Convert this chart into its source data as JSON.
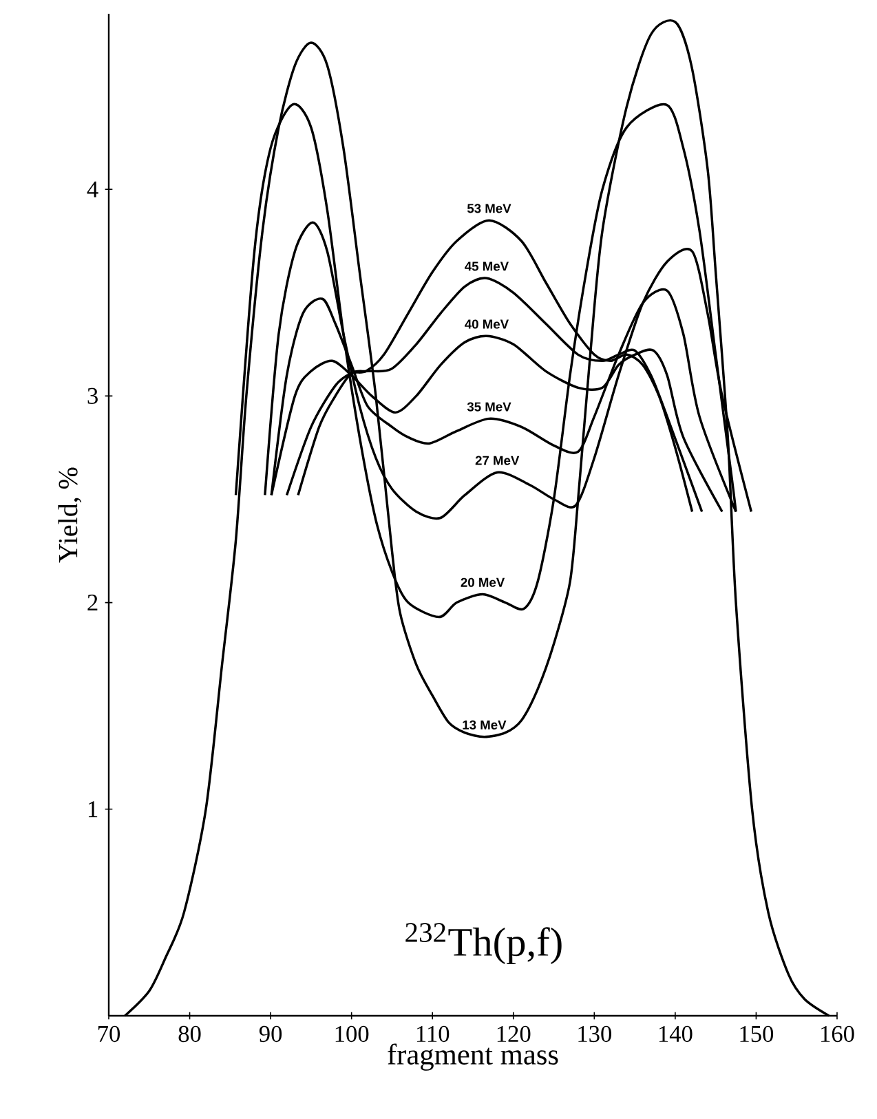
{
  "chart_data": {
    "type": "line",
    "xlabel": "fragment mass",
    "ylabel": "Yield, %",
    "xlim": [
      70,
      160
    ],
    "ylim": [
      0,
      4.85
    ],
    "xticks": [
      70,
      80,
      90,
      100,
      110,
      120,
      130,
      140,
      150,
      160
    ],
    "yticks": [
      1,
      2,
      3,
      4
    ],
    "annotations": [
      "$^{232}$Th(p,f)"
    ],
    "series": [
      {
        "name": "53 MeV",
        "color": "#000000",
        "x": [
          92,
          95,
          98,
          100,
          101.8,
          104,
          107,
          110,
          113,
          117,
          121,
          124,
          127,
          130,
          132,
          134,
          136,
          138,
          140,
          142.1
        ],
        "values": [
          2.52,
          2.85,
          3.05,
          3.11,
          3.12,
          3.2,
          3.4,
          3.6,
          3.75,
          3.85,
          3.75,
          3.55,
          3.35,
          3.2,
          3.17,
          3.2,
          3.15,
          3.0,
          2.75,
          2.44
        ]
      },
      {
        "name": "45 MeV",
        "color": "#000000",
        "x": [
          93.4,
          96,
          98,
          100,
          102,
          104.9,
          108,
          111,
          114,
          116.7,
          120,
          124,
          128,
          131,
          133,
          135,
          137,
          139,
          143.3
        ],
        "values": [
          2.52,
          2.85,
          3.0,
          3.11,
          3.12,
          3.13,
          3.25,
          3.4,
          3.53,
          3.57,
          3.5,
          3.35,
          3.2,
          3.17,
          3.2,
          3.22,
          3.1,
          2.9,
          2.44
        ]
      },
      {
        "name": "40 MeV",
        "color": "#000000",
        "x": [
          90.1,
          93,
          95,
          97.6,
          100,
          102.5,
          105.4,
          108,
          111,
          114,
          116.7,
          120,
          124,
          128,
          131,
          133,
          135,
          137.3,
          139,
          141,
          145.8
        ],
        "values": [
          2.52,
          3.0,
          3.12,
          3.17,
          3.1,
          3.0,
          2.92,
          3.0,
          3.15,
          3.26,
          3.29,
          3.25,
          3.12,
          3.04,
          3.04,
          3.15,
          3.2,
          3.22,
          3.1,
          2.8,
          2.44
        ]
      },
      {
        "name": "35 MeV",
        "color": "#000000",
        "x": [
          90.1,
          92,
          94,
          96.4,
          98,
          100,
          102,
          105,
          107,
          109.6,
          113,
          117,
          121,
          125,
          128,
          130,
          133,
          136,
          139,
          141,
          143,
          147.5
        ],
        "values": [
          2.52,
          3.1,
          3.4,
          3.47,
          3.35,
          3.15,
          2.95,
          2.85,
          2.8,
          2.77,
          2.83,
          2.89,
          2.85,
          2.76,
          2.73,
          2.9,
          3.2,
          3.45,
          3.51,
          3.3,
          2.9,
          2.44
        ]
      },
      {
        "name": "27 MeV",
        "color": "#000000",
        "x": [
          89.3,
          91,
          93,
          95.2,
          97,
          99,
          101,
          103,
          105,
          108,
          111,
          114,
          118,
          122,
          125,
          127.7,
          130,
          133,
          136,
          139,
          142.1,
          144,
          145.8,
          149.4
        ],
        "values": [
          2.52,
          3.3,
          3.7,
          3.84,
          3.7,
          3.3,
          2.95,
          2.7,
          2.55,
          2.44,
          2.41,
          2.52,
          2.63,
          2.57,
          2.5,
          2.47,
          2.7,
          3.1,
          3.45,
          3.65,
          3.7,
          3.4,
          3.0,
          2.44
        ]
      },
      {
        "name": "20 MeV",
        "color": "#000000",
        "x": [
          85.7,
          88,
          90,
          92.7,
          95,
          97,
          99,
          101,
          103,
          105,
          107,
          110.8,
          113,
          116.2,
          119,
          121.3,
          123,
          125,
          127,
          129,
          131,
          134,
          138.9,
          141,
          143,
          145,
          147,
          147.5
        ],
        "values": [
          2.52,
          3.7,
          4.2,
          4.41,
          4.3,
          3.9,
          3.3,
          2.8,
          2.4,
          2.15,
          2.0,
          1.93,
          2.0,
          2.04,
          2.0,
          1.97,
          2.1,
          2.5,
          3.1,
          3.6,
          4.0,
          4.3,
          4.41,
          4.2,
          3.8,
          3.2,
          2.6,
          2.44
        ]
      },
      {
        "name": "13 MeV",
        "color": "#000000",
        "x": [
          72,
          75,
          77,
          79.3,
          82,
          84,
          85.7,
          87,
          89,
          91,
          93,
          95,
          97,
          99,
          101,
          103,
          105,
          106,
          108,
          110,
          112,
          114,
          116.4,
          119,
          121,
          123,
          125,
          127,
          128,
          129.5,
          131,
          134,
          137,
          140,
          142,
          144,
          145,
          146.5,
          147.5,
          149.5,
          151.5,
          154,
          156,
          159
        ],
        "values": [
          0,
          0.12,
          0.28,
          0.5,
          1.0,
          1.7,
          2.3,
          3.0,
          3.8,
          4.3,
          4.6,
          4.71,
          4.6,
          4.2,
          3.6,
          3.0,
          2.25,
          1.95,
          1.7,
          1.55,
          1.42,
          1.37,
          1.35,
          1.37,
          1.43,
          1.58,
          1.8,
          2.1,
          2.5,
          3.2,
          3.8,
          4.4,
          4.75,
          4.81,
          4.6,
          4.1,
          3.6,
          2.8,
          2.0,
          1.0,
          0.5,
          0.2,
          0.08,
          0
        ]
      }
    ]
  }
}
